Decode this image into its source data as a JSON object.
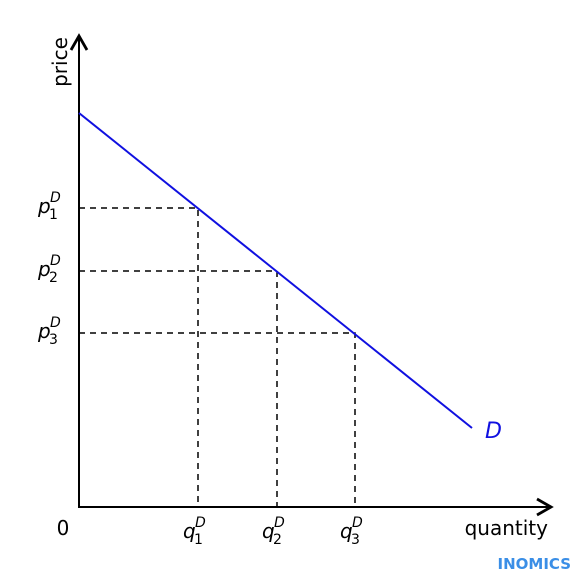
{
  "axes": {
    "y_label": "price",
    "x_label": "quantity",
    "origin": "0"
  },
  "curve": {
    "label": "D"
  },
  "price_levels": [
    {
      "base": "p",
      "sub": "1",
      "sup": "D"
    },
    {
      "base": "p",
      "sub": "2",
      "sup": "D"
    },
    {
      "base": "p",
      "sub": "3",
      "sup": "D"
    }
  ],
  "quantity_levels": [
    {
      "base": "q",
      "sub": "1",
      "sup": "D"
    },
    {
      "base": "q",
      "sub": "2",
      "sup": "D"
    },
    {
      "base": "q",
      "sub": "3",
      "sup": "D"
    }
  ],
  "brand": "INOMICS"
}
